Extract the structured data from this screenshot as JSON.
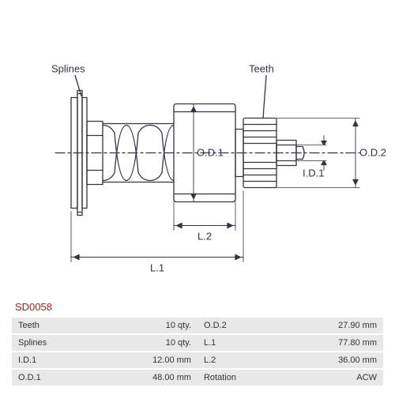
{
  "diagram": {
    "labels": {
      "splines": "Splines",
      "teeth": "Teeth",
      "od1": "O.D.1",
      "od2": "O.D.2",
      "id1": "I.D.1",
      "l1": "L.1",
      "l2": "L.2"
    },
    "stroke_color": "#333344",
    "stroke_width": 1.3,
    "bg_color": "#ffffff"
  },
  "part_code": "SD0058",
  "specs": {
    "rows": [
      {
        "l": "Teeth",
        "v": "10 qty.",
        "r": "O.D.2",
        "rv": "27.90 mm"
      },
      {
        "l": "Splines",
        "v": "10 qty.",
        "r": "L.1",
        "rv": "77.80 mm"
      },
      {
        "l": "I.D.1",
        "v": "12.00 mm",
        "r": "L.2",
        "rv": "36.00 mm"
      },
      {
        "l": "O.D.1",
        "v": "48.00 mm",
        "r": "Rotation",
        "rv": "ACW"
      }
    ],
    "row_bg": "#e8e8e8",
    "text_color": "#333333",
    "fontsize": 11
  }
}
